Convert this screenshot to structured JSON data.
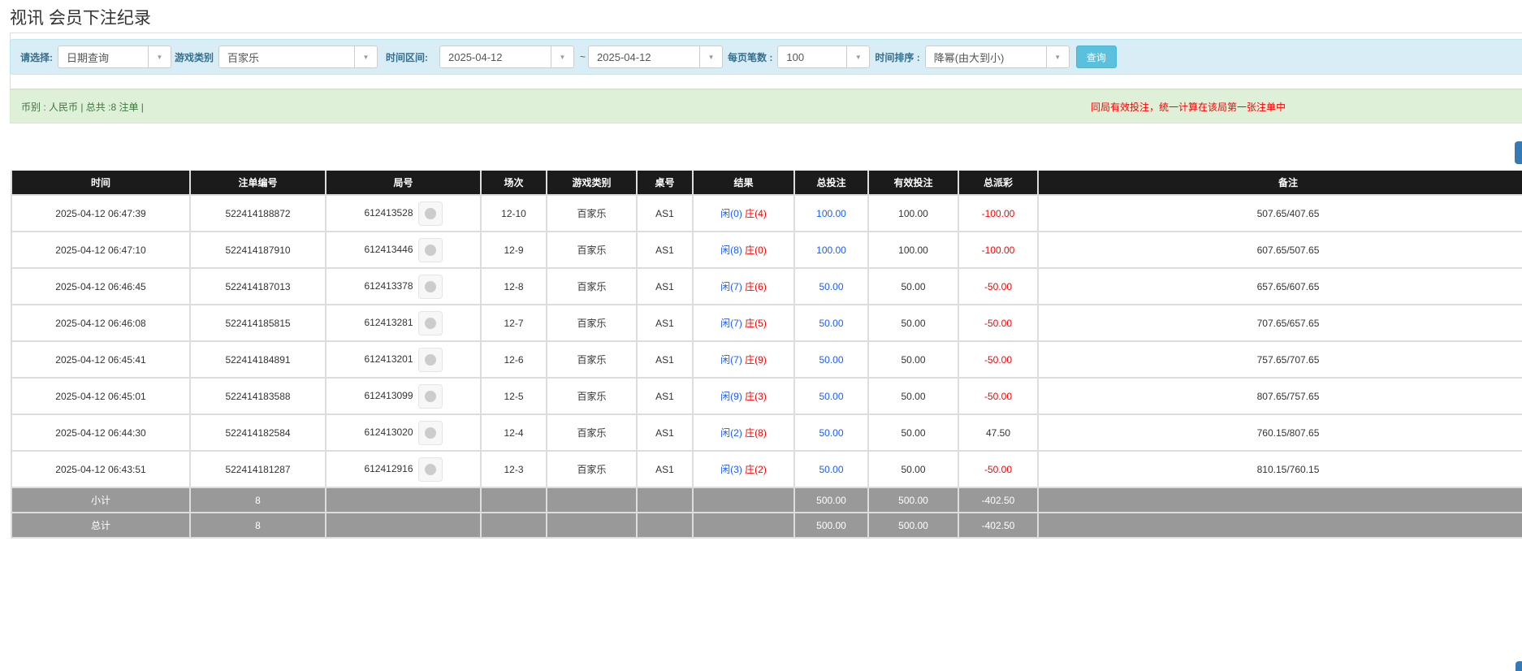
{
  "title": "视讯 会员下注纪录",
  "filter": {
    "select_label": "请选择:",
    "select_value": "日期查询",
    "game_label": "游戏类别",
    "game_value": "百家乐",
    "range_label": "时间区间:",
    "date_from": "2025-04-12",
    "tilde": "~",
    "date_to": "2025-04-12",
    "per_page_label": "每页笔数 :",
    "per_page_value": "100",
    "sort_label": "时间排序 :",
    "sort_value": "降幂(由大到小)",
    "query_label": "查询"
  },
  "info": {
    "summary": "币别 : 人民币 | 总共 :8 注单 |",
    "note": "同局有效投注，统一计算在该局第一张注单中"
  },
  "colors": {
    "header": "#1b1b1b",
    "blue": "#1a5cff",
    "red": "#ff0000",
    "summary": "#999999",
    "filter_bg": "#d9edf7",
    "info_bg": "#dff0d8"
  },
  "table": {
    "headers": [
      "时间",
      "注单编号",
      "局号",
      "场次",
      "游戏类别",
      "桌号",
      "结果",
      "总投注",
      "有效投注",
      "总派彩",
      "备注"
    ],
    "rows": [
      {
        "time": "2025-04-12 06:47:39",
        "bet_id": "522414188872",
        "round": "612413528",
        "shoe": "12-10",
        "game": "百家乐",
        "table": "AS1",
        "player": "闲(0)",
        "banker": "庄(4)",
        "total": "100.00",
        "valid": "100.00",
        "payout": "-100.00",
        "payout_neg": true,
        "note": "507.65/407.65"
      },
      {
        "time": "2025-04-12 06:47:10",
        "bet_id": "522414187910",
        "round": "612413446",
        "shoe": "12-9",
        "game": "百家乐",
        "table": "AS1",
        "player": "闲(8)",
        "banker": "庄(0)",
        "total": "100.00",
        "valid": "100.00",
        "payout": "-100.00",
        "payout_neg": true,
        "note": "607.65/507.65"
      },
      {
        "time": "2025-04-12 06:46:45",
        "bet_id": "522414187013",
        "round": "612413378",
        "shoe": "12-8",
        "game": "百家乐",
        "table": "AS1",
        "player": "闲(7)",
        "banker": "庄(6)",
        "total": "50.00",
        "valid": "50.00",
        "payout": "-50.00",
        "payout_neg": true,
        "note": "657.65/607.65"
      },
      {
        "time": "2025-04-12 06:46:08",
        "bet_id": "522414185815",
        "round": "612413281",
        "shoe": "12-7",
        "game": "百家乐",
        "table": "AS1",
        "player": "闲(7)",
        "banker": "庄(5)",
        "total": "50.00",
        "valid": "50.00",
        "payout": "-50.00",
        "payout_neg": true,
        "note": "707.65/657.65"
      },
      {
        "time": "2025-04-12 06:45:41",
        "bet_id": "522414184891",
        "round": "612413201",
        "shoe": "12-6",
        "game": "百家乐",
        "table": "AS1",
        "player": "闲(7)",
        "banker": "庄(9)",
        "total": "50.00",
        "valid": "50.00",
        "payout": "-50.00",
        "payout_neg": true,
        "note": "757.65/707.65"
      },
      {
        "time": "2025-04-12 06:45:01",
        "bet_id": "522414183588",
        "round": "612413099",
        "shoe": "12-5",
        "game": "百家乐",
        "table": "AS1",
        "player": "闲(9)",
        "banker": "庄(3)",
        "total": "50.00",
        "valid": "50.00",
        "payout": "-50.00",
        "payout_neg": true,
        "note": "807.65/757.65"
      },
      {
        "time": "2025-04-12 06:44:30",
        "bet_id": "522414182584",
        "round": "612413020",
        "shoe": "12-4",
        "game": "百家乐",
        "table": "AS1",
        "player": "闲(2)",
        "banker": "庄(8)",
        "total": "50.00",
        "valid": "50.00",
        "payout": "47.50",
        "payout_neg": false,
        "note": "760.15/807.65"
      },
      {
        "time": "2025-04-12 06:43:51",
        "bet_id": "522414181287",
        "round": "612412916",
        "shoe": "12-3",
        "game": "百家乐",
        "table": "AS1",
        "player": "闲(3)",
        "banker": "庄(2)",
        "total": "50.00",
        "valid": "50.00",
        "payout": "-50.00",
        "payout_neg": true,
        "note": "810.15/760.15"
      }
    ],
    "subtotal": {
      "label": "小计",
      "count": "8",
      "total": "500.00",
      "valid": "500.00",
      "payout": "-402.50"
    },
    "grand_total": {
      "label": "总计",
      "count": "8",
      "total": "500.00",
      "valid": "500.00",
      "payout": "-402.50"
    }
  }
}
